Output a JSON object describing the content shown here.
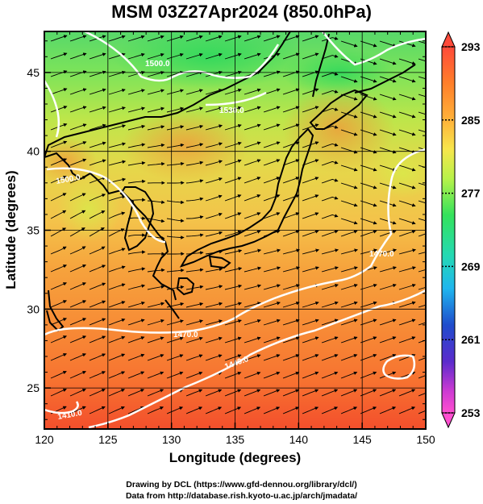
{
  "title": "MSM 03Z27Apr2024 (850.0hPa)",
  "chart_data": {
    "type": "heatmap",
    "title": "MSM 03Z27Apr2024 (850.0hPa)",
    "xlabel": "Longitude (degrees)",
    "ylabel": "Latitude  (degrees)",
    "xlim": [
      120,
      150
    ],
    "ylim": [
      22.4,
      47.6
    ],
    "xticks": [
      120,
      125,
      130,
      135,
      140,
      145,
      150
    ],
    "yticks": [
      25,
      30,
      35,
      40,
      45
    ],
    "grid": true,
    "colorbar": {
      "min": 253,
      "max": 293,
      "ticks": [
        293,
        285,
        277,
        269,
        261,
        253
      ],
      "colors": [
        "#ff4a3a",
        "#ff7f2a",
        "#ffb23a",
        "#f7e64c",
        "#b8f24a",
        "#34e25c",
        "#24d9b3",
        "#1fb6ee",
        "#1f4ccc",
        "#5b2bcc",
        "#cc3ad2",
        "#ff4fd0"
      ]
    },
    "contour_labels": [
      "1530.0",
      "1500.0",
      "1500.0",
      "1470.0",
      "1470.0",
      "1440.0",
      "1410.0"
    ]
  },
  "credits": {
    "line1": "Drawing by DCL (https://www.gfd-dennou.org/library/dcl/)",
    "line2": "Data from http://database.rish.kyoto-u.ac.jp/arch/jmadata/"
  }
}
